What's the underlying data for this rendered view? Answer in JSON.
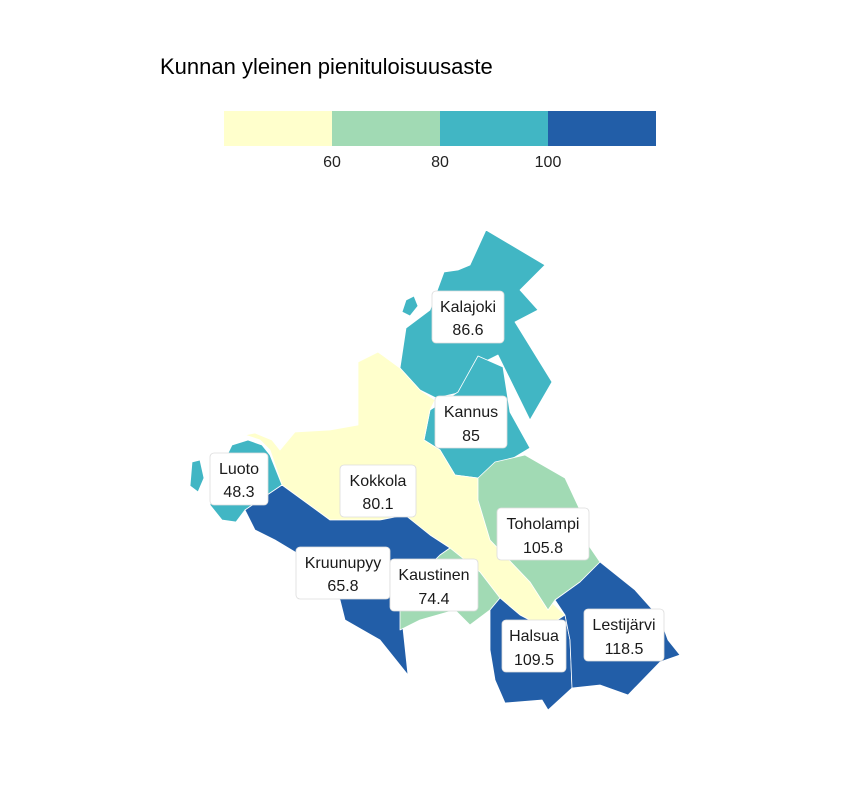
{
  "title": "Kunnan yleinen pienituloisuusaste",
  "legend": {
    "colors": [
      "#ffffcc",
      "#a1dab4",
      "#41b6c4",
      "#225ea8"
    ],
    "ticks": [
      "60",
      "80",
      "100"
    ]
  },
  "municipalities": [
    {
      "name": "Kalajoki",
      "value": "86.6",
      "color": "#41b6c4"
    },
    {
      "name": "Kannus",
      "value": "85",
      "color": "#41b6c4"
    },
    {
      "name": "Luoto",
      "value": "48.3",
      "color": "#ffffcc"
    },
    {
      "name": "Kokkola",
      "value": "80.1",
      "color": "#41b6c4"
    },
    {
      "name": "Toholampi",
      "value": "105.8",
      "color": "#225ea8"
    },
    {
      "name": "Kruunupyy",
      "value": "65.8",
      "color": "#a1dab4"
    },
    {
      "name": "Kaustinen",
      "value": "74.4",
      "color": "#a1dab4"
    },
    {
      "name": "Halsua",
      "value": "109.5",
      "color": "#225ea8"
    },
    {
      "name": "Lestijärvi",
      "value": "118.5",
      "color": "#225ea8"
    }
  ]
}
